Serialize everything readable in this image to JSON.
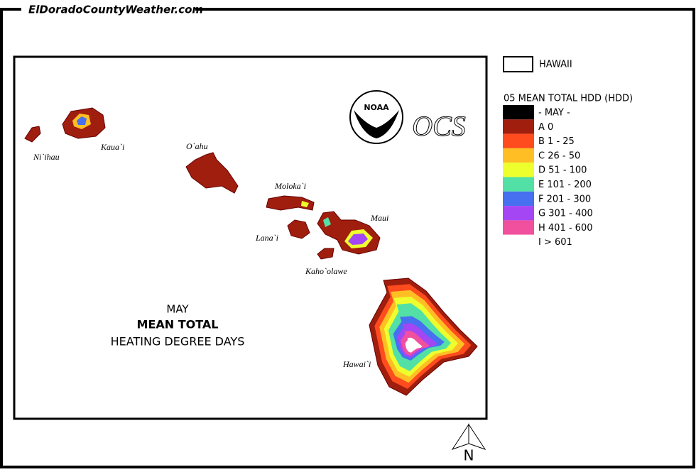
{
  "header": {
    "site": "ElDoradoCountyWeather.com"
  },
  "map": {
    "title": {
      "month": "MAY",
      "line1": "MEAN TOTAL",
      "line2": "HEATING DEGREE DAYS"
    },
    "islands": [
      "Ni`ihau",
      "Kaua`i",
      "O`ahu",
      "Moloka`i",
      "Lana`i",
      "Maui",
      "Kaho`olawe",
      "Hawai`i"
    ],
    "logos": {
      "noaa": "NOAA",
      "ocs": "OCS"
    },
    "north": "N"
  },
  "legend": {
    "boundary": "HAWAII",
    "title": "05 MEAN TOTAL HDD (HDD)",
    "items": [
      {
        "label": "- MAY -",
        "color": "#000000"
      },
      {
        "label": "A 0",
        "color": "#a01e0e"
      },
      {
        "label": "B 1 - 25",
        "color": "#ff4c1e"
      },
      {
        "label": "C 26 - 50",
        "color": "#ffbf24"
      },
      {
        "label": "D 51 - 100",
        "color": "#eeff2e"
      },
      {
        "label": "E 101 - 200",
        "color": "#52e0a6"
      },
      {
        "label": "F 201 - 300",
        "color": "#4670f0"
      },
      {
        "label": "G 301 - 400",
        "color": "#a446f4"
      },
      {
        "label": "H 401 - 600",
        "color": "#f0509e"
      },
      {
        "label": "I > 601",
        "color": "#ffffff"
      }
    ]
  }
}
